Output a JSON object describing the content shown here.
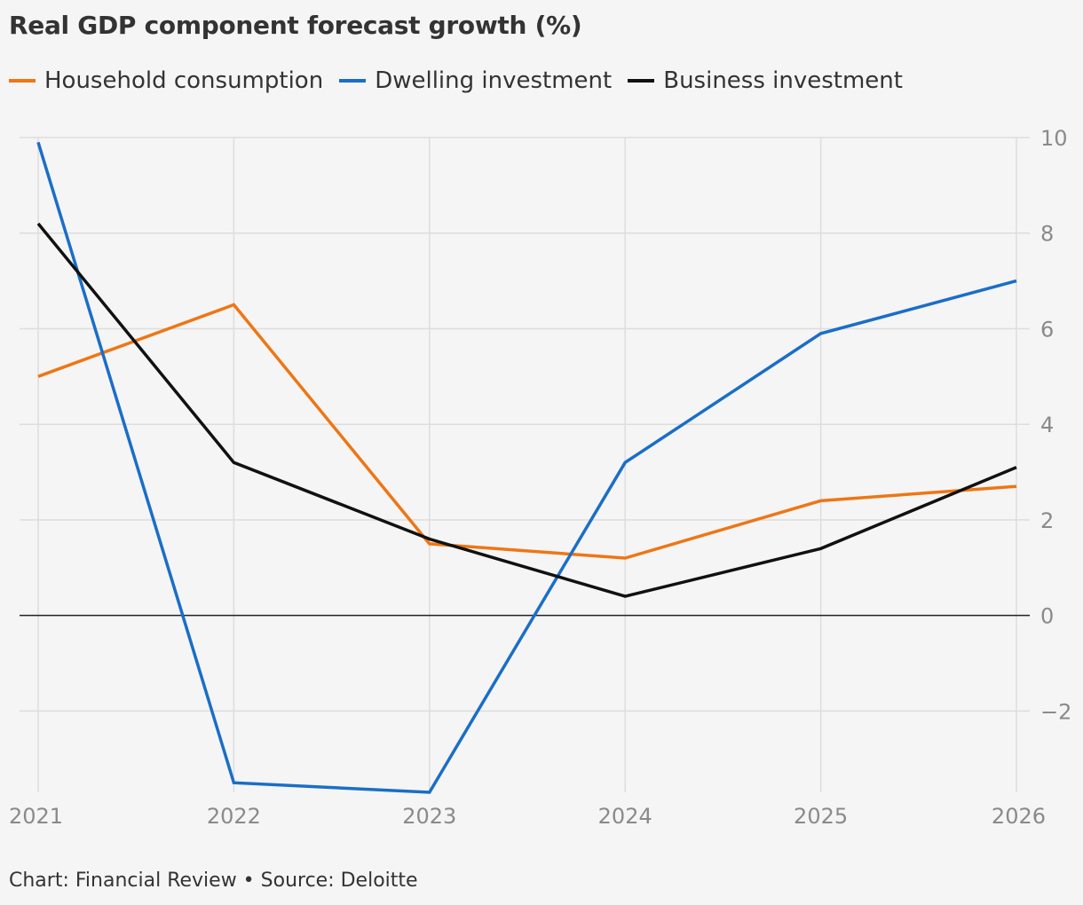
{
  "title": "Real GDP component forecast growth (%)",
  "source": "Chart: Financial Review • Source: Deloitte",
  "chart_data": {
    "type": "line",
    "x": [
      "2021",
      "2022",
      "2023",
      "2024",
      "2025",
      "2026"
    ],
    "series": [
      {
        "name": "Household consumption",
        "color": "#ee7615",
        "values": [
          5.0,
          6.5,
          1.5,
          1.2,
          2.4,
          2.7
        ]
      },
      {
        "name": "Dwelling investment",
        "color": "#1a6ec7",
        "values": [
          9.9,
          -3.5,
          -3.7,
          3.2,
          5.9,
          7.0
        ]
      },
      {
        "name": "Business investment",
        "color": "#111111",
        "values": [
          8.2,
          3.2,
          1.6,
          0.4,
          1.4,
          3.1
        ]
      }
    ],
    "y_ticks": [
      "10",
      "8",
      "6",
      "4",
      "2",
      "0",
      "−2"
    ],
    "y_tick_values": [
      10,
      8,
      6,
      4,
      2,
      0,
      -2
    ],
    "ylim": [
      -3.7,
      10
    ],
    "y_axis_side": "right",
    "grid": true,
    "legend_placement": "top-left"
  }
}
